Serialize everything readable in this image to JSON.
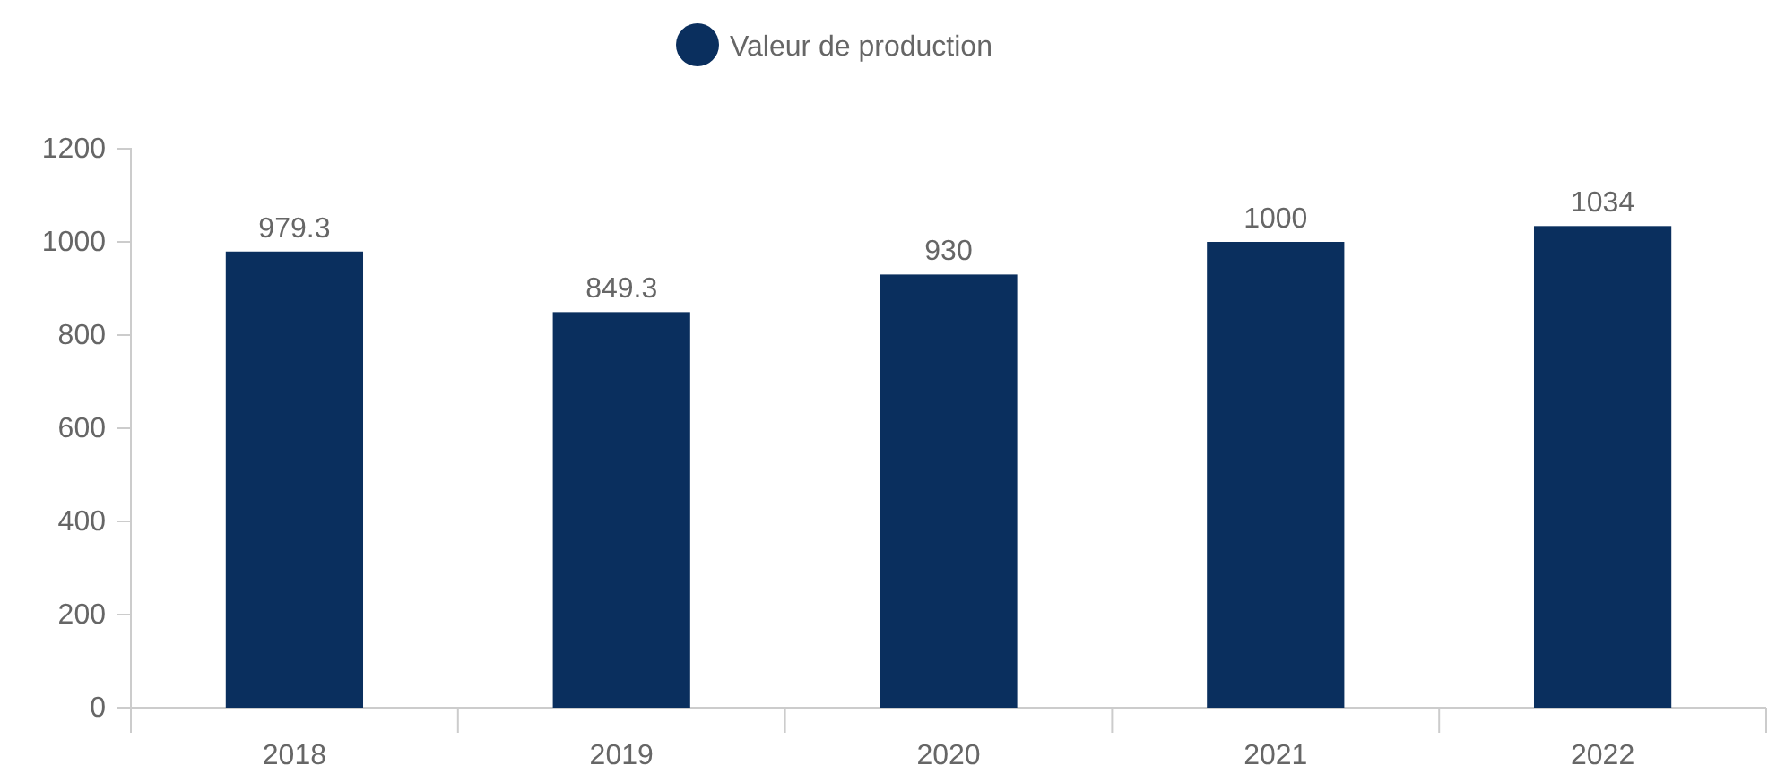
{
  "chart_data": {
    "type": "bar",
    "categories": [
      "2018",
      "2019",
      "2020",
      "2021",
      "2022"
    ],
    "series": [
      {
        "name": "Valeur de production",
        "color": "#0a2f5e",
        "values": [
          979.3,
          849.3,
          930,
          1000,
          1034
        ]
      }
    ],
    "ylim": [
      0,
      1200
    ],
    "yticks": [
      0,
      200,
      400,
      600,
      800,
      1000,
      1200
    ],
    "grid": false,
    "legend": "top",
    "data_labels": true
  }
}
